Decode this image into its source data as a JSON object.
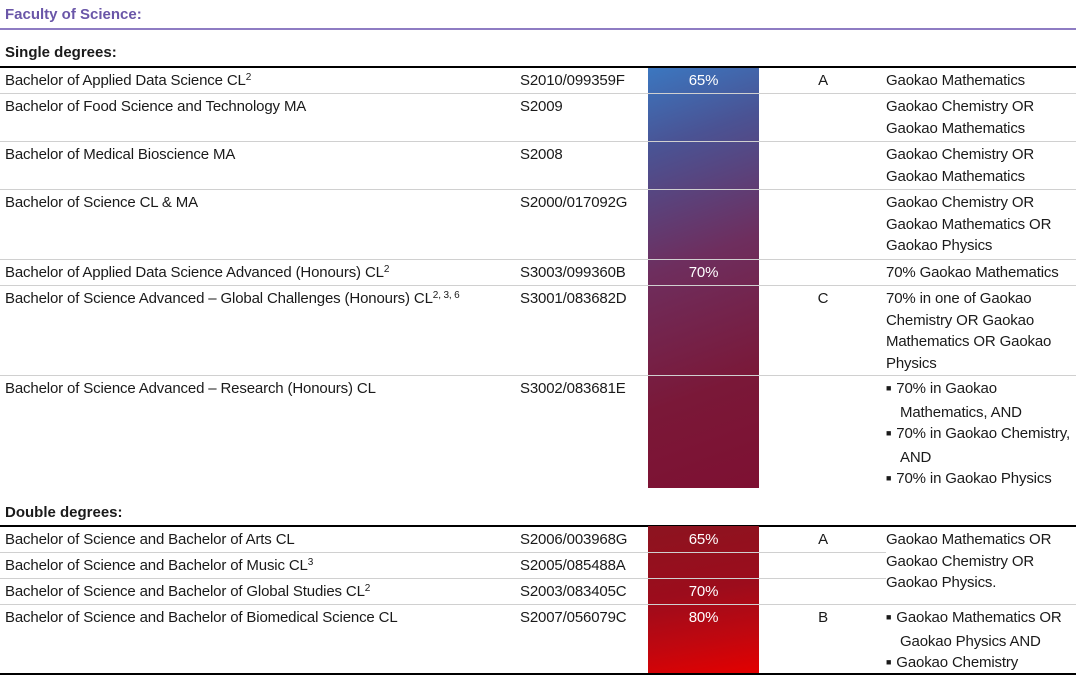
{
  "faculty": "Faculty of Science:",
  "single": {
    "heading": "Single degrees:",
    "rows": [
      {
        "name": "Bachelor of Applied Data Science",
        "tag": "CL",
        "sup": "2",
        "code": "S2010/099359F",
        "pct": "65%",
        "band": "A",
        "subject": "Gaokao Mathematics"
      },
      {
        "name": "Bachelor of Food Science and Technology",
        "tag": "MA",
        "sup": "",
        "code": "S2009",
        "pct": "",
        "band": "",
        "subject": "Gaokao Chemistry OR Gaokao Mathematics"
      },
      {
        "name": "Bachelor of Medical Bioscience",
        "tag": "MA",
        "sup": "",
        "code": "S2008",
        "pct": "",
        "band": "",
        "subject": "Gaokao Chemistry OR Gaokao Mathematics"
      },
      {
        "name": "Bachelor of Science",
        "tag": "CL & MA",
        "sup": "",
        "code": "S2000/017092G",
        "pct": "",
        "band": "",
        "subject": "Gaokao Chemistry OR Gaokao Mathematics OR Gaokao Physics"
      },
      {
        "name": "Bachelor of Applied Data Science Advanced (Honours)",
        "tag": "CL",
        "sup": "2",
        "code": "S3003/099360B",
        "pct": "70%",
        "band": "",
        "subject": "70% Gaokao Mathematics"
      },
      {
        "name": "Bachelor of Science Advanced – Global Challenges (Honours)",
        "tag": "CL",
        "sup": "2, 3, 6",
        "code": "S3001/083682D",
        "pct": "",
        "band": "C",
        "subject": "70% in one of Gaokao Chemistry OR Gaokao Mathematics OR Gaokao Physics"
      },
      {
        "name": "Bachelor of Science Advanced – Research (Honours)",
        "tag": "CL",
        "sup": "",
        "code": "S3002/083681E",
        "pct": "",
        "band": "",
        "bullets": [
          "70% in Gaokao Mathematics, AND",
          "70% in Gaokao Chemistry, AND",
          "70% in Gaokao Physics"
        ]
      }
    ]
  },
  "double": {
    "heading": "Double degrees:",
    "rows": [
      {
        "name": "Bachelor of Science and Bachelor of Arts",
        "tag": "CL",
        "sup": "",
        "code": "S2006/003968G",
        "pct": "65%",
        "band": "A"
      },
      {
        "name": "Bachelor of Science and Bachelor of Music",
        "tag": "CL",
        "sup": "3",
        "code": "S2005/085488A",
        "pct": "",
        "band": ""
      },
      {
        "name": "Bachelor of Science and Bachelor of Global Studies",
        "tag": "CL",
        "sup": "2",
        "code": "S2003/083405C",
        "pct": "70%",
        "band": ""
      },
      {
        "name": "Bachelor of Science and Bachelor of Biomedical Science",
        "tag": "CL",
        "sup": "",
        "code": "S2007/056079C",
        "pct": "80%",
        "band": "B",
        "bullets": [
          "Gaokao Mathematics OR Gaokao Physics AND",
          "Gaokao Chemistry"
        ]
      }
    ],
    "merged_subject": "Gaokao Mathematics OR Gaokao Chemistry OR Gaokao Physics."
  }
}
